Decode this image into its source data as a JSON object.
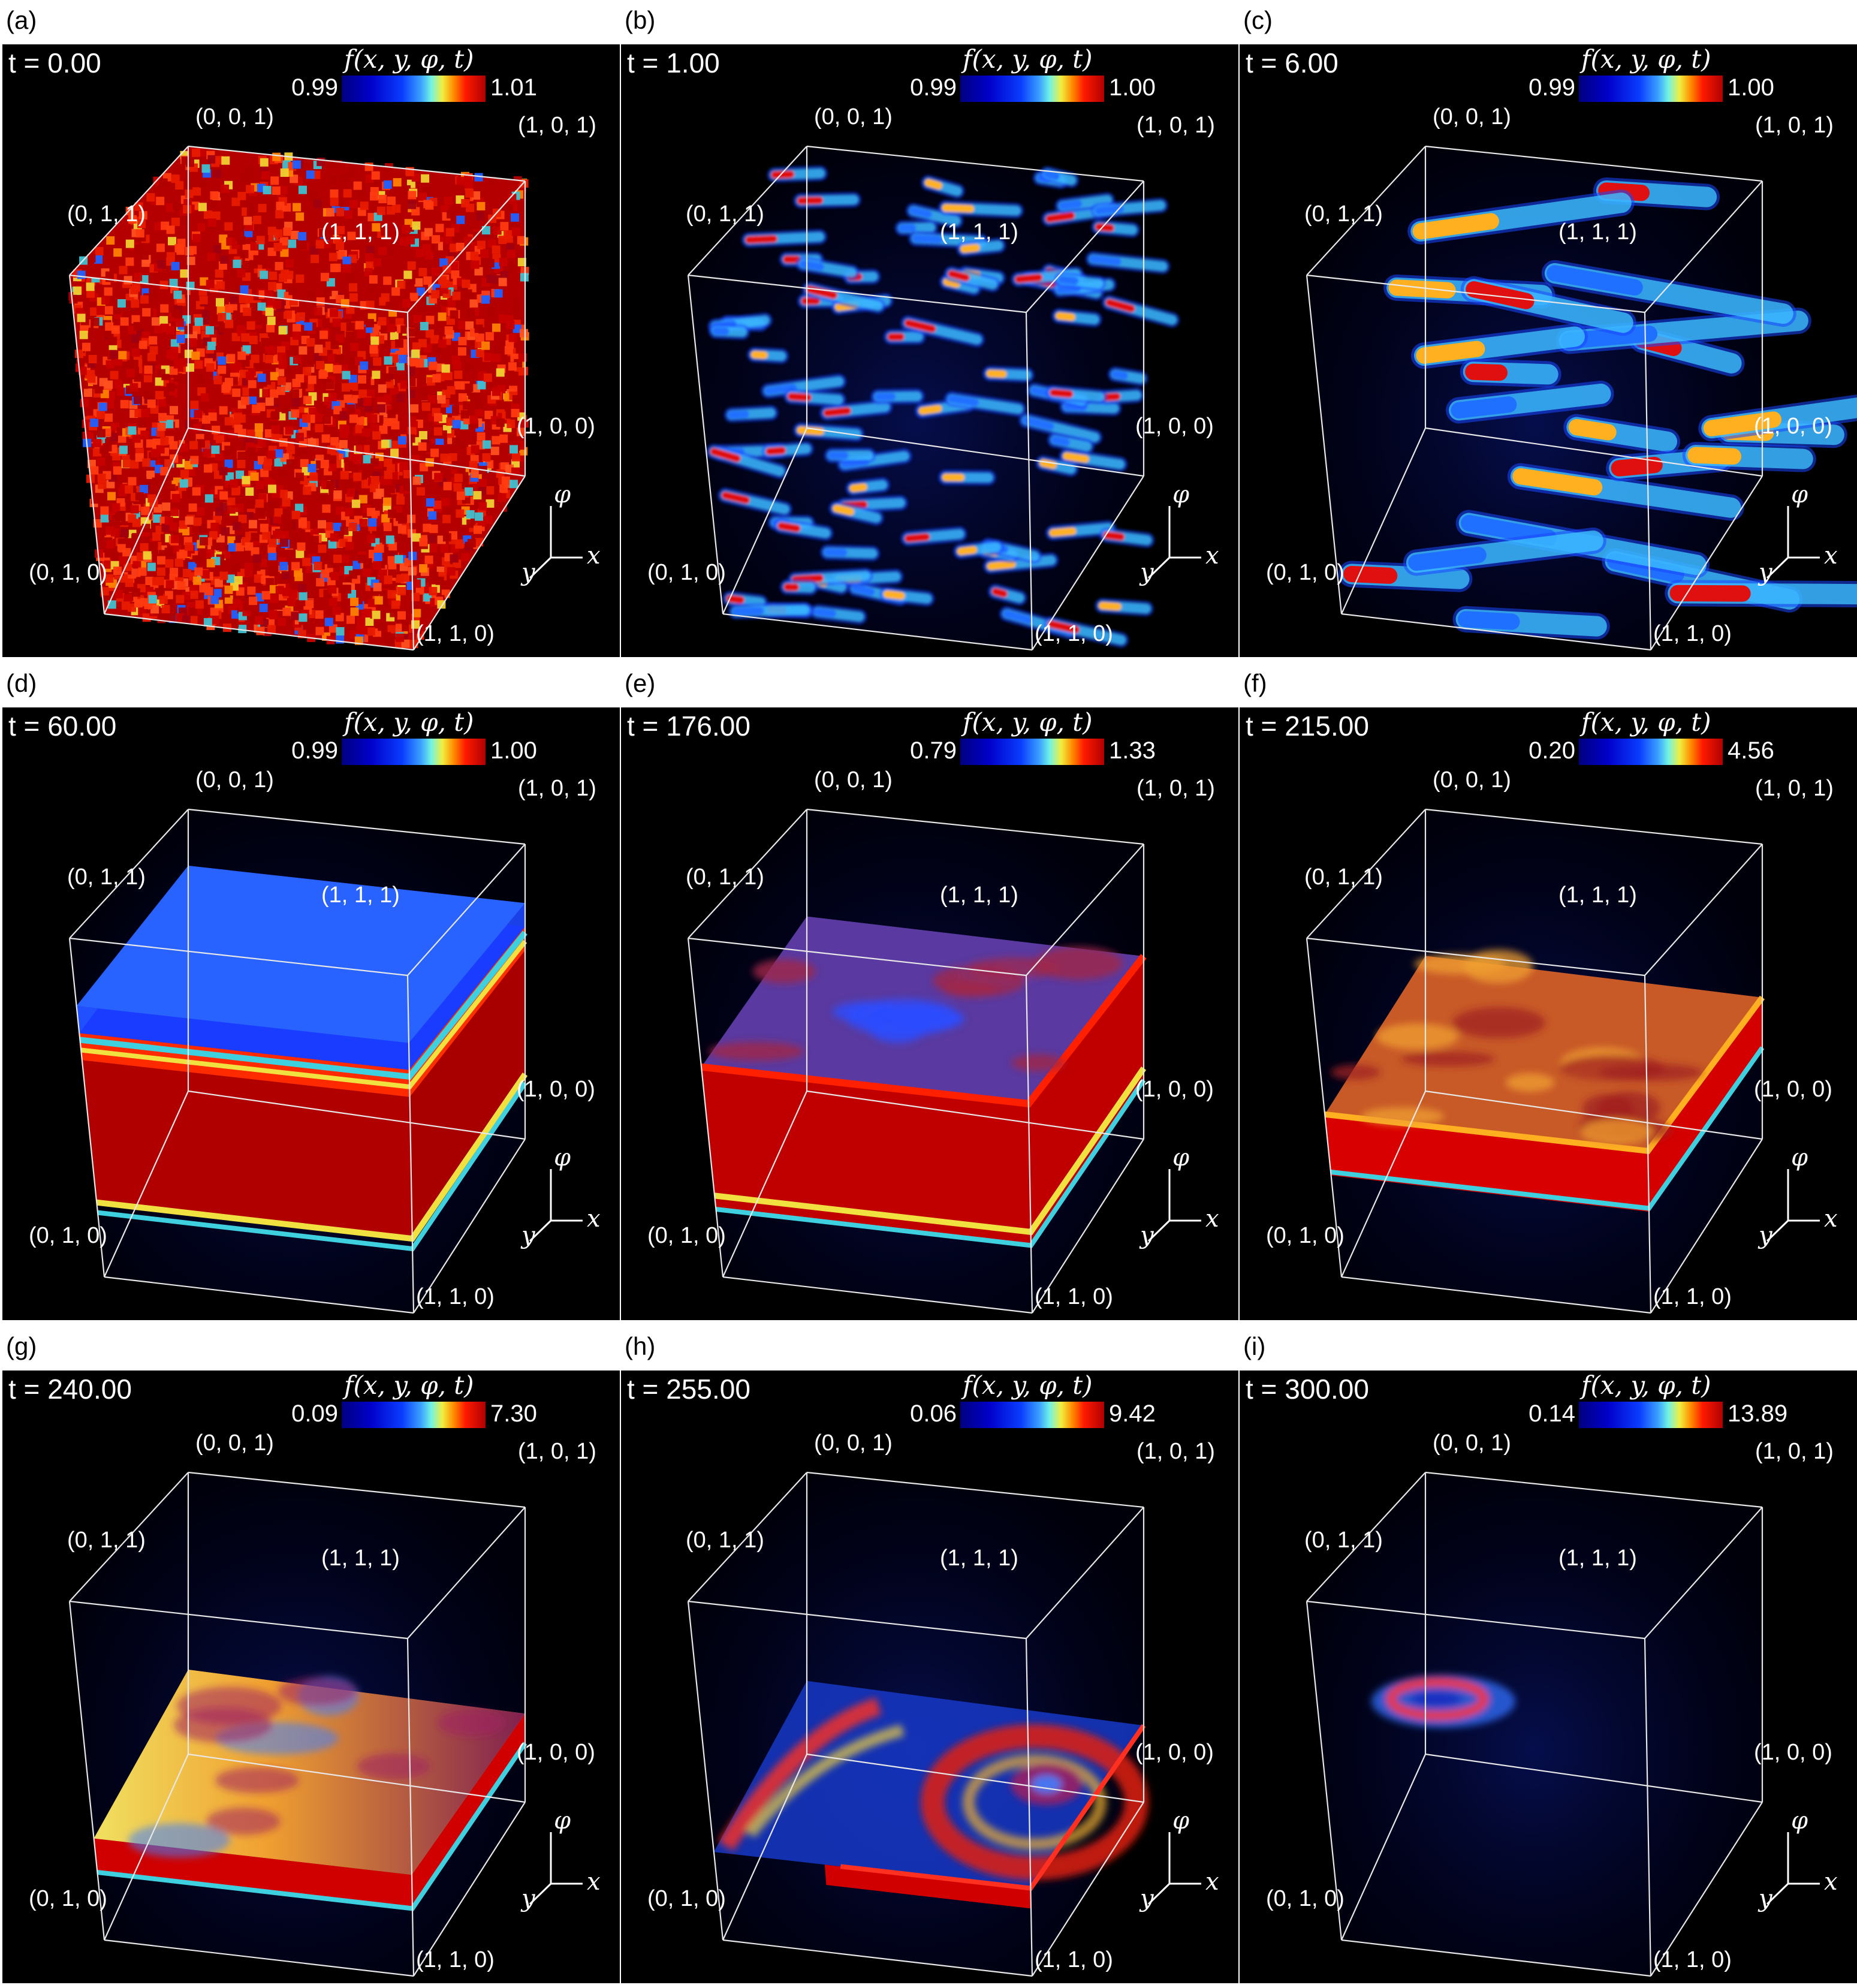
{
  "panels": [
    {
      "label": "(a)",
      "time": "t = 0.00",
      "cb_min": "0.99",
      "cb_max": "1.01",
      "state": "noise"
    },
    {
      "label": "(b)",
      "time": "t = 1.00",
      "cb_min": "0.99",
      "cb_max": "1.00",
      "state": "rods"
    },
    {
      "label": "(c)",
      "time": "t = 6.00",
      "cb_min": "0.99",
      "cb_max": "1.00",
      "state": "bigrods"
    },
    {
      "label": "(d)",
      "time": "t = 60.00",
      "cb_min": "0.99",
      "cb_max": "1.00",
      "state": "thickslab"
    },
    {
      "label": "(e)",
      "time": "t = 176.00",
      "cb_min": "0.79",
      "cb_max": "1.33",
      "state": "slab"
    },
    {
      "label": "(f)",
      "time": "t = 215.00",
      "cb_min": "0.20",
      "cb_max": "4.56",
      "state": "thinslab"
    },
    {
      "label": "(g)",
      "time": "t = 240.00",
      "cb_min": "0.09",
      "cb_max": "7.30",
      "state": "lowslab"
    },
    {
      "label": "(h)",
      "time": "t = 255.00",
      "cb_min": "0.06",
      "cb_max": "9.42",
      "state": "vortex"
    },
    {
      "label": "(i)",
      "time": "t = 300.00",
      "cb_min": "0.14",
      "cb_max": "13.89",
      "state": "ring"
    }
  ],
  "colorbar_title": "f(x, y, φ, t)",
  "corners": {
    "c001": "(0, 0, 1)",
    "c101": "(1, 0, 1)",
    "c011": "(0, 1, 1)",
    "c111": "(1, 1, 1)",
    "c100": "(1, 0, 0)",
    "c010": "(0, 1, 0)",
    "c110": "(1, 1, 0)"
  },
  "axes": {
    "phi": "φ",
    "x": "x",
    "y": "y"
  },
  "colors": {
    "background": "#000000",
    "deep_blue": "#000080",
    "red": "#c00000",
    "edge": "#ffffff"
  }
}
